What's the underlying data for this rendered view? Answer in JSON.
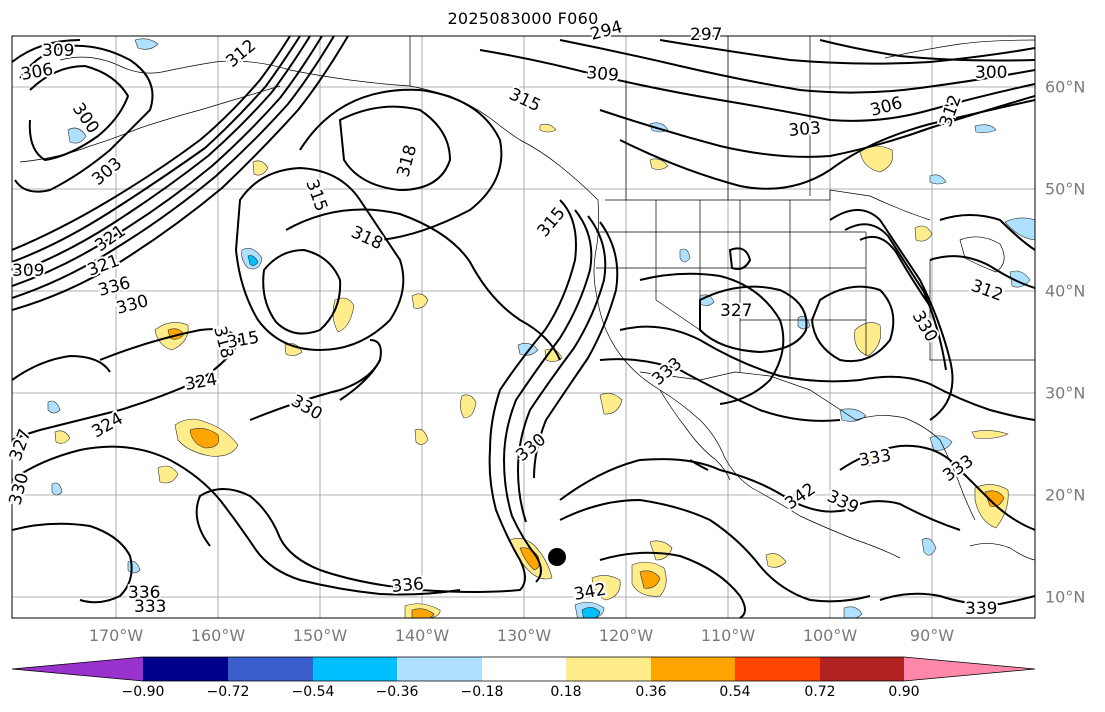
{
  "title": "2025083000 F060",
  "lon_labels": [
    "170°W",
    "160°W",
    "150°W",
    "140°W",
    "130°W",
    "120°W",
    "110°W",
    "100°W",
    "90°W"
  ],
  "lat_labels": [
    "60°N",
    "50°N",
    "40°N",
    "30°N",
    "20°N",
    "10°N"
  ],
  "contour_labels": [
    "309",
    "306",
    "300",
    "312",
    "294",
    "297",
    "303",
    "309",
    "315",
    "300",
    "306",
    "321",
    "312",
    "318",
    "315",
    "303",
    "318",
    "315",
    "324",
    "321",
    "309",
    "336",
    "330",
    "318",
    "315",
    "324",
    "330",
    "327",
    "312",
    "330",
    "333",
    "330",
    "336",
    "342",
    "339",
    "333",
    "333",
    "330",
    "327",
    "336",
    "333",
    "339",
    "342"
  ],
  "colorbar": {
    "tick_labels": [
      "−0.90",
      "−0.72",
      "−0.54",
      "−0.36",
      "−0.18",
      "0.18",
      "0.36",
      "0.54",
      "0.72",
      "0.90"
    ],
    "colors": [
      "#9932CC",
      "#00008B",
      "#3A5FCD",
      "#00BFFF",
      "#AEE1FF",
      "#FFFFFF",
      "#FFEC8B",
      "#FFA500",
      "#FF4500",
      "#B22222",
      "#FF88AA"
    ]
  },
  "marker": {
    "lon": -126.5,
    "lat": 13.9
  }
}
